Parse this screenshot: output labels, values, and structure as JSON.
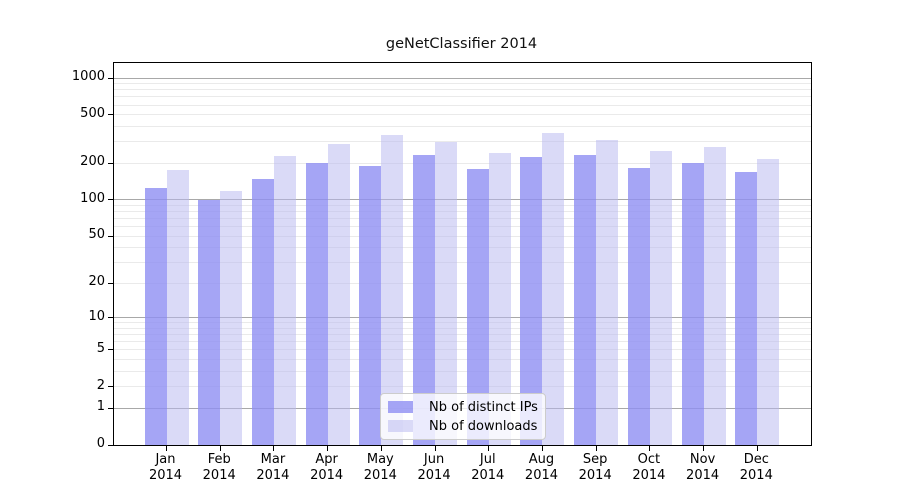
{
  "title": "geNetClassifier 2014",
  "chart_data": {
    "type": "bar",
    "title": "geNetClassifier 2014",
    "categories": [
      "Jan 2014",
      "Feb 2014",
      "Mar 2014",
      "Apr 2014",
      "May 2014",
      "Jun 2014",
      "Jul 2014",
      "Aug 2014",
      "Sep 2014",
      "Oct 2014",
      "Nov 2014",
      "Dec 2014"
    ],
    "series": [
      {
        "name": "Nb of distinct IPs",
        "color": "rgba(143,143,242,0.8)",
        "solid_color": "#a5a5f2",
        "values": [
          125,
          100,
          150,
          200,
          190,
          232,
          178,
          226,
          235,
          183,
          200,
          170
        ]
      },
      {
        "name": "Nb of downloads",
        "color": "rgba(184,184,240,0.52)",
        "solid_color": "#dadaf7",
        "values": [
          177,
          118,
          230,
          287,
          342,
          299,
          242,
          353,
          311,
          251,
          270,
          216
        ]
      }
    ],
    "xlabel": "",
    "ylabel": "",
    "yscale": "log1p",
    "ylim": [
      0,
      1330
    ],
    "grid": true,
    "legend_position": "inside-bottom-center"
  },
  "y_axis": {
    "tick_values": [
      0,
      1,
      2,
      5,
      10,
      20,
      50,
      100,
      200,
      500,
      1000
    ],
    "tick_labels": [
      "0",
      "1",
      "2",
      "5",
      "10",
      "20",
      "50",
      "100",
      "200",
      "500",
      "1000"
    ]
  },
  "colors": {
    "grid_major": "#a8a8a8",
    "grid_minor": "#eaeaea",
    "axis": "#000000",
    "legend_bg": "rgba(255,255,255,0.78)",
    "legend_border": "#cccccc"
  }
}
